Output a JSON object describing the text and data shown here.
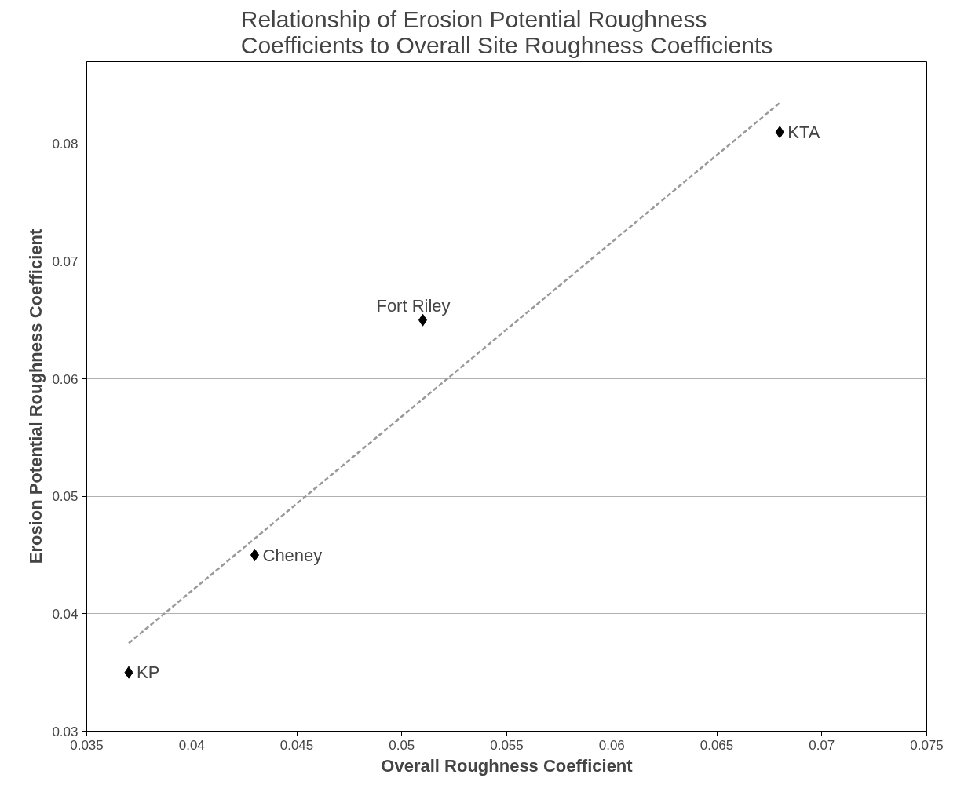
{
  "chart_data": {
    "type": "scatter",
    "title": "Relationship of Erosion Potential Roughness\nCoefficients to Overall Site Roughness Coefficients",
    "xlabel": "Overall Roughness Coefficient",
    "ylabel": "Erosion Potential Roughness Coefficient",
    "x": [
      0.037,
      0.043,
      0.051,
      0.068
    ],
    "series": [
      {
        "color": "#000000",
        "values": [
          0.035,
          0.045,
          0.065,
          0.081
        ],
        "marker": "diamond"
      },
      {
        "type": "line",
        "color": "#999999",
        "x": [
          0.037,
          0.068
        ],
        "values": [
          0.0375,
          0.0835
        ],
        "line_style": "dashed",
        "marker": "none"
      }
    ],
    "annotations": [
      {
        "text": "KP",
        "x": 0.037,
        "y": 0.035
      },
      {
        "text": "Cheney",
        "x": 0.043,
        "y": 0.045
      },
      {
        "text": "Fort Riley",
        "x": 0.051,
        "y": 0.065
      },
      {
        "text": "KTA",
        "x": 0.068,
        "y": 0.081
      }
    ],
    "xlim": [
      0.035,
      0.075
    ],
    "xticks": [
      0.035,
      0.04,
      0.045,
      0.05,
      0.055,
      0.06,
      0.065,
      0.07,
      0.075
    ],
    "ylim": [
      0.03,
      0.087
    ],
    "yticks": [
      0.03,
      0.04,
      0.05,
      0.06,
      0.07,
      0.08
    ],
    "grid": "y"
  }
}
